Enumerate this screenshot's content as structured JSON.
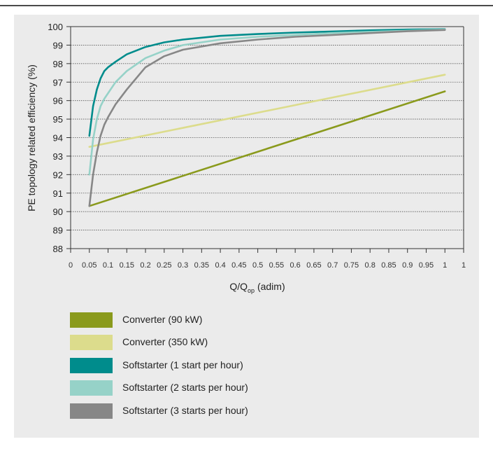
{
  "chart_data": {
    "type": "line",
    "xlabel_main": "Q/Q",
    "xlabel_sub": "op",
    "xlabel_unit": " (adim)",
    "ylabel": "PE topology related efficiency (%)",
    "xlim": [
      0,
      1.05
    ],
    "ylim": [
      88,
      100
    ],
    "x_ticks": [
      {
        "v": 0,
        "label": "0"
      },
      {
        "v": 0.05,
        "label": "0.05"
      },
      {
        "v": 0.1,
        "label": "0.1"
      },
      {
        "v": 0.15,
        "label": "0.15"
      },
      {
        "v": 0.2,
        "label": "0.2"
      },
      {
        "v": 0.25,
        "label": "0.25"
      },
      {
        "v": 0.3,
        "label": "0.3"
      },
      {
        "v": 0.35,
        "label": "0.35"
      },
      {
        "v": 0.4,
        "label": "0.4"
      },
      {
        "v": 0.45,
        "label": "0.45"
      },
      {
        "v": 0.5,
        "label": "0.5"
      },
      {
        "v": 0.55,
        "label": "0.55"
      },
      {
        "v": 0.6,
        "label": "0.6"
      },
      {
        "v": 0.65,
        "label": "0.65"
      },
      {
        "v": 0.7,
        "label": "0.7"
      },
      {
        "v": 0.75,
        "label": "0.75"
      },
      {
        "v": 0.8,
        "label": "0.8"
      },
      {
        "v": 0.85,
        "label": "0.85"
      },
      {
        "v": 0.9,
        "label": "0.9"
      },
      {
        "v": 0.95,
        "label": "0.95"
      },
      {
        "v": 1.0,
        "label": "1"
      },
      {
        "v": 1.05,
        "label": "1"
      }
    ],
    "y_ticks": [
      "88",
      "89",
      "90",
      "91",
      "92",
      "93",
      "94",
      "95",
      "96",
      "97",
      "98",
      "99",
      "100"
    ],
    "grid": "horizontal dotted",
    "legend_placement": "below",
    "series": [
      {
        "name": "Converter (90 kW)",
        "color": "#8a9a1c",
        "x": [
          0.05,
          1.0
        ],
        "y": [
          90.3,
          96.5
        ]
      },
      {
        "name": "Converter (350 kW)",
        "color": "#dcdc8c",
        "x": [
          0.05,
          1.0
        ],
        "y": [
          93.5,
          97.4
        ]
      },
      {
        "name": "Softstarter (1 start per hour)",
        "color": "#008c8c",
        "x": [
          0.05,
          0.06,
          0.07,
          0.08,
          0.09,
          0.1,
          0.12,
          0.15,
          0.2,
          0.25,
          0.3,
          0.4,
          0.5,
          0.6,
          0.7,
          0.8,
          0.9,
          1.0
        ],
        "y": [
          94.1,
          95.7,
          96.6,
          97.2,
          97.6,
          97.8,
          98.1,
          98.5,
          98.9,
          99.15,
          99.3,
          99.5,
          99.6,
          99.68,
          99.74,
          99.8,
          99.84,
          99.86
        ]
      },
      {
        "name": "Softstarter (2 starts per hour)",
        "color": "#96d2c8",
        "x": [
          0.05,
          0.06,
          0.07,
          0.08,
          0.09,
          0.1,
          0.12,
          0.15,
          0.2,
          0.25,
          0.3,
          0.4,
          0.5,
          0.6,
          0.7,
          0.8,
          0.9,
          1.0
        ],
        "y": [
          92.0,
          93.9,
          95.0,
          95.7,
          96.1,
          96.4,
          97.0,
          97.6,
          98.3,
          98.7,
          99.0,
          99.3,
          99.45,
          99.55,
          99.65,
          99.72,
          99.78,
          99.84
        ]
      },
      {
        "name": "Softstarter (3 starts per hour)",
        "color": "#878787",
        "x": [
          0.05,
          0.06,
          0.07,
          0.08,
          0.09,
          0.1,
          0.12,
          0.15,
          0.2,
          0.25,
          0.3,
          0.4,
          0.5,
          0.6,
          0.7,
          0.8,
          0.9,
          1.0
        ],
        "y": [
          90.3,
          92.0,
          93.2,
          94.1,
          94.7,
          95.1,
          95.8,
          96.6,
          97.8,
          98.4,
          98.75,
          99.1,
          99.3,
          99.45,
          99.55,
          99.65,
          99.75,
          99.82
        ]
      }
    ]
  },
  "legend": [
    {
      "label": "Converter (90 kW)",
      "color": "#8a9a1c"
    },
    {
      "label": "Converter (350 kW)",
      "color": "#dcdc8c"
    },
    {
      "label": "Softstarter (1 start per hour)",
      "color": "#008c8c"
    },
    {
      "label": "Softstarter (2 starts per hour)",
      "color": "#96d2c8"
    },
    {
      "label": "Softstarter (3 starts per hour)",
      "color": "#878787"
    }
  ]
}
